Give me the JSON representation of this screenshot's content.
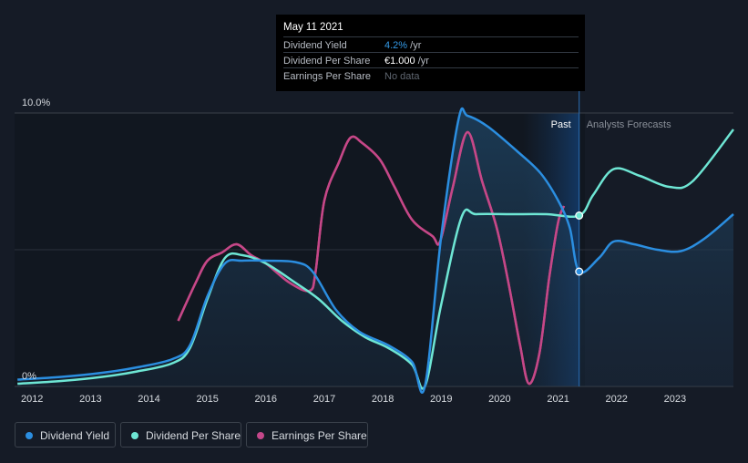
{
  "tooltip": {
    "date": "May 11 2021",
    "rows": [
      {
        "label": "Dividend Yield",
        "value": "4.2%",
        "unit": " /yr"
      },
      {
        "label": "Dividend Per Share",
        "value": "€1.000",
        "unit": " /yr"
      },
      {
        "label": "Earnings Per Share",
        "value": "No data",
        "unit": ""
      }
    ]
  },
  "colors": {
    "background": "#151b26",
    "dividend_yield": "#2b8ee0",
    "dividend_per_share": "#6ee6d4",
    "earnings_per_share": "#c4478a",
    "eps_negative": "#e04545",
    "gridline": "#3a404a"
  },
  "chart_data": {
    "type": "line",
    "x_ticks": [
      "2012",
      "2013",
      "2014",
      "2015",
      "2016",
      "2017",
      "2018",
      "2019",
      "2020",
      "2021",
      "2022",
      "2023"
    ],
    "y_ticks": [
      "0%",
      "10.0%"
    ],
    "ylim": [
      0,
      10
    ],
    "xlim": [
      2011.7,
      2024
    ],
    "grid": true,
    "past_label": "Past",
    "forecast_label": "Analysts Forecasts",
    "forecast_start": 2021.36,
    "series": [
      {
        "name": "Dividend Yield",
        "key": "dividend_yield",
        "points": [
          [
            2011.75,
            0.25
          ],
          [
            2012.5,
            0.35
          ],
          [
            2013.2,
            0.5
          ],
          [
            2013.8,
            0.7
          ],
          [
            2014.4,
            1.0
          ],
          [
            2014.7,
            1.5
          ],
          [
            2015.0,
            3.3
          ],
          [
            2015.3,
            4.5
          ],
          [
            2015.6,
            4.6
          ],
          [
            2016.0,
            4.6
          ],
          [
            2016.5,
            4.55
          ],
          [
            2016.8,
            4.2
          ],
          [
            2017.2,
            2.8
          ],
          [
            2017.6,
            2.0
          ],
          [
            2018.1,
            1.5
          ],
          [
            2018.5,
            0.9
          ],
          [
            2018.72,
            0.0
          ],
          [
            2019.0,
            5.5
          ],
          [
            2019.3,
            9.8
          ],
          [
            2019.45,
            9.9
          ],
          [
            2019.8,
            9.5
          ],
          [
            2020.3,
            8.6
          ],
          [
            2020.7,
            7.8
          ],
          [
            2021.0,
            6.8
          ],
          [
            2021.2,
            5.8
          ],
          [
            2021.36,
            4.2
          ],
          [
            2021.7,
            4.7
          ],
          [
            2021.95,
            5.3
          ],
          [
            2022.3,
            5.2
          ],
          [
            2022.7,
            5.0
          ],
          [
            2023.1,
            4.95
          ],
          [
            2023.5,
            5.4
          ],
          [
            2024.0,
            6.3
          ]
        ]
      },
      {
        "name": "Dividend Per Share",
        "key": "dividend_per_share",
        "points": [
          [
            2011.75,
            0.1
          ],
          [
            2012.5,
            0.2
          ],
          [
            2013.2,
            0.35
          ],
          [
            2013.8,
            0.55
          ],
          [
            2014.4,
            0.85
          ],
          [
            2014.7,
            1.4
          ],
          [
            2015.0,
            3.2
          ],
          [
            2015.3,
            4.7
          ],
          [
            2015.6,
            4.8
          ],
          [
            2016.0,
            4.5
          ],
          [
            2016.5,
            3.8
          ],
          [
            2016.9,
            3.2
          ],
          [
            2017.3,
            2.4
          ],
          [
            2017.7,
            1.8
          ],
          [
            2018.1,
            1.4
          ],
          [
            2018.5,
            0.8
          ],
          [
            2018.72,
            0.0
          ],
          [
            2019.0,
            3.0
          ],
          [
            2019.35,
            6.2
          ],
          [
            2019.6,
            6.3
          ],
          [
            2020.2,
            6.3
          ],
          [
            2020.8,
            6.3
          ],
          [
            2021.36,
            6.25
          ],
          [
            2021.6,
            7.0
          ],
          [
            2021.95,
            7.95
          ],
          [
            2022.4,
            7.7
          ],
          [
            2022.9,
            7.3
          ],
          [
            2023.3,
            7.5
          ],
          [
            2024.0,
            9.4
          ]
        ]
      },
      {
        "name": "Earnings Per Share",
        "key": "earnings_per_share",
        "points": [
          [
            2014.5,
            2.4
          ],
          [
            2014.8,
            3.8
          ],
          [
            2015.0,
            4.6
          ],
          [
            2015.25,
            4.9
          ],
          [
            2015.5,
            5.2
          ],
          [
            2015.75,
            4.8
          ],
          [
            2016.0,
            4.5
          ],
          [
            2016.4,
            3.8
          ],
          [
            2016.75,
            3.5
          ],
          [
            2016.85,
            4.2
          ],
          [
            2017.0,
            6.8
          ],
          [
            2017.25,
            8.2
          ],
          [
            2017.45,
            9.1
          ],
          [
            2017.65,
            8.9
          ],
          [
            2017.95,
            8.3
          ],
          [
            2018.2,
            7.3
          ],
          [
            2018.5,
            6.1
          ],
          [
            2018.85,
            5.5
          ],
          [
            2018.98,
            5.3
          ],
          [
            2019.2,
            7.3
          ],
          [
            2019.45,
            9.3
          ],
          [
            2019.7,
            7.5
          ],
          [
            2019.95,
            5.8
          ],
          [
            2020.15,
            3.8
          ],
          [
            2020.35,
            1.5
          ],
          [
            2020.5,
            0.1
          ],
          [
            2020.68,
            1.2
          ],
          [
            2020.85,
            4.0
          ],
          [
            2021.0,
            6.0
          ],
          [
            2021.1,
            6.6
          ]
        ]
      }
    ]
  },
  "legend": [
    {
      "label": "Dividend Yield",
      "key": "dividend_yield"
    },
    {
      "label": "Dividend Per Share",
      "key": "dividend_per_share"
    },
    {
      "label": "Earnings Per Share",
      "key": "earnings_per_share"
    }
  ]
}
